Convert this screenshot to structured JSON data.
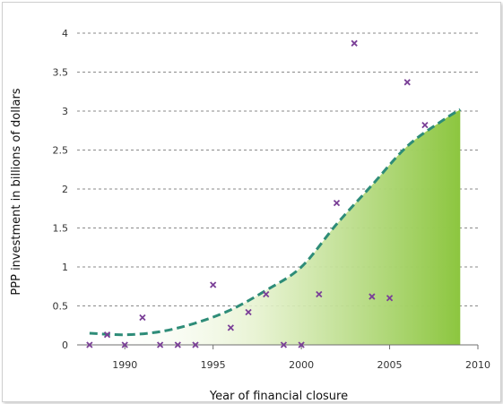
{
  "chart_data": {
    "type": "scatter",
    "title": "",
    "xlabel": "Year of financial closure",
    "ylabel": "PPP investment in billions of dollars",
    "xlim": [
      1987.5,
      2010
    ],
    "ylim": [
      0,
      4
    ],
    "grid": true,
    "x_ticks": [
      "1990",
      "1995",
      "2000",
      "2005",
      "2010"
    ],
    "y_ticks": [
      "0",
      "0.5",
      "1",
      "1.5",
      "2",
      "2.5",
      "3",
      "3.5",
      "4"
    ],
    "series": [
      {
        "marker": "x",
        "color": "#7a3f97",
        "points": [
          {
            "x": 1988,
            "y": 0
          },
          {
            "x": 1989,
            "y": 0.13
          },
          {
            "x": 1990,
            "y": 0
          },
          {
            "x": 1991,
            "y": 0.35
          },
          {
            "x": 1992,
            "y": 0
          },
          {
            "x": 1993,
            "y": 0
          },
          {
            "x": 1994,
            "y": 0
          },
          {
            "x": 1995,
            "y": 0.77
          },
          {
            "x": 1996,
            "y": 0.22
          },
          {
            "x": 1997,
            "y": 0.42
          },
          {
            "x": 1998,
            "y": 0.65
          },
          {
            "x": 1999,
            "y": 0
          },
          {
            "x": 2000,
            "y": 0
          },
          {
            "x": 2001,
            "y": 0.65
          },
          {
            "x": 2002,
            "y": 1.82
          },
          {
            "x": 2003,
            "y": 3.87
          },
          {
            "x": 2004,
            "y": 0.62
          },
          {
            "x": 2005,
            "y": 0.6
          },
          {
            "x": 2006,
            "y": 3.37
          },
          {
            "x": 2007,
            "y": 2.82
          }
        ]
      }
    ],
    "trend": {
      "style": "dashed",
      "color": "#2e8c78",
      "fill": "#9bcf52",
      "points": [
        {
          "x": 1988,
          "y": 0.15
        },
        {
          "x": 1990,
          "y": 0.13
        },
        {
          "x": 1992,
          "y": 0.17
        },
        {
          "x": 1994,
          "y": 0.28
        },
        {
          "x": 1996,
          "y": 0.45
        },
        {
          "x": 1998,
          "y": 0.7
        },
        {
          "x": 2000,
          "y": 1.0
        },
        {
          "x": 2002,
          "y": 1.55
        },
        {
          "x": 2004,
          "y": 2.05
        },
        {
          "x": 2006,
          "y": 2.55
        },
        {
          "x": 2008,
          "y": 2.88
        },
        {
          "x": 2009,
          "y": 3.02
        }
      ]
    }
  }
}
